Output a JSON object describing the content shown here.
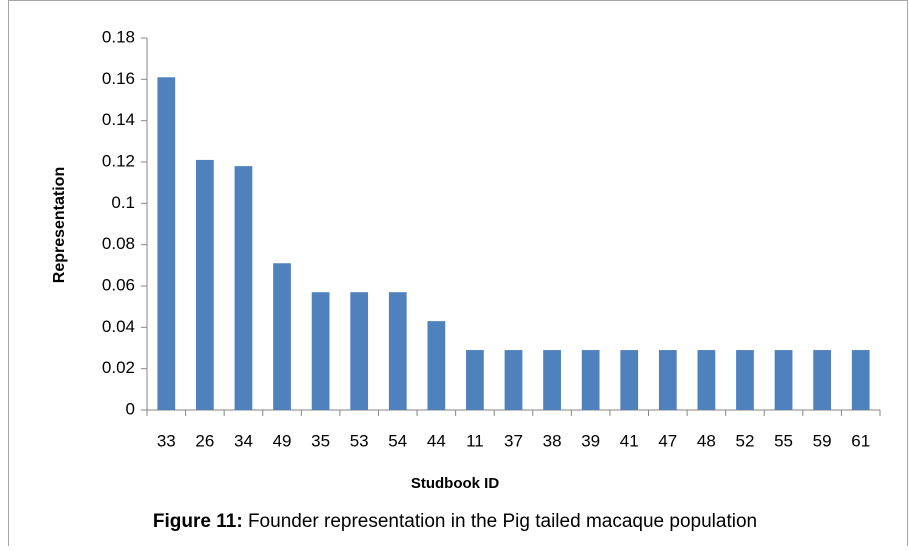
{
  "chart_data": {
    "type": "bar",
    "categories": [
      "33",
      "26",
      "34",
      "49",
      "35",
      "53",
      "54",
      "44",
      "11",
      "37",
      "38",
      "39",
      "41",
      "47",
      "48",
      "52",
      "55",
      "59",
      "61"
    ],
    "values": [
      0.161,
      0.121,
      0.118,
      0.071,
      0.057,
      0.057,
      0.057,
      0.043,
      0.029,
      0.029,
      0.029,
      0.029,
      0.029,
      0.029,
      0.029,
      0.029,
      0.029,
      0.029,
      0.029
    ],
    "color": "#4f81bd",
    "ylim": [
      0,
      0.18
    ],
    "yticks": [
      0,
      0.02,
      0.04,
      0.06,
      0.08,
      0.1,
      0.12,
      0.14,
      0.16,
      0.18
    ],
    "grid": false,
    "x_label": "Studbook ID",
    "y_label": "Representation",
    "caption": {
      "label": "Figure 11:",
      "text": "Founder representation in the Pig tailed macaque population"
    }
  }
}
